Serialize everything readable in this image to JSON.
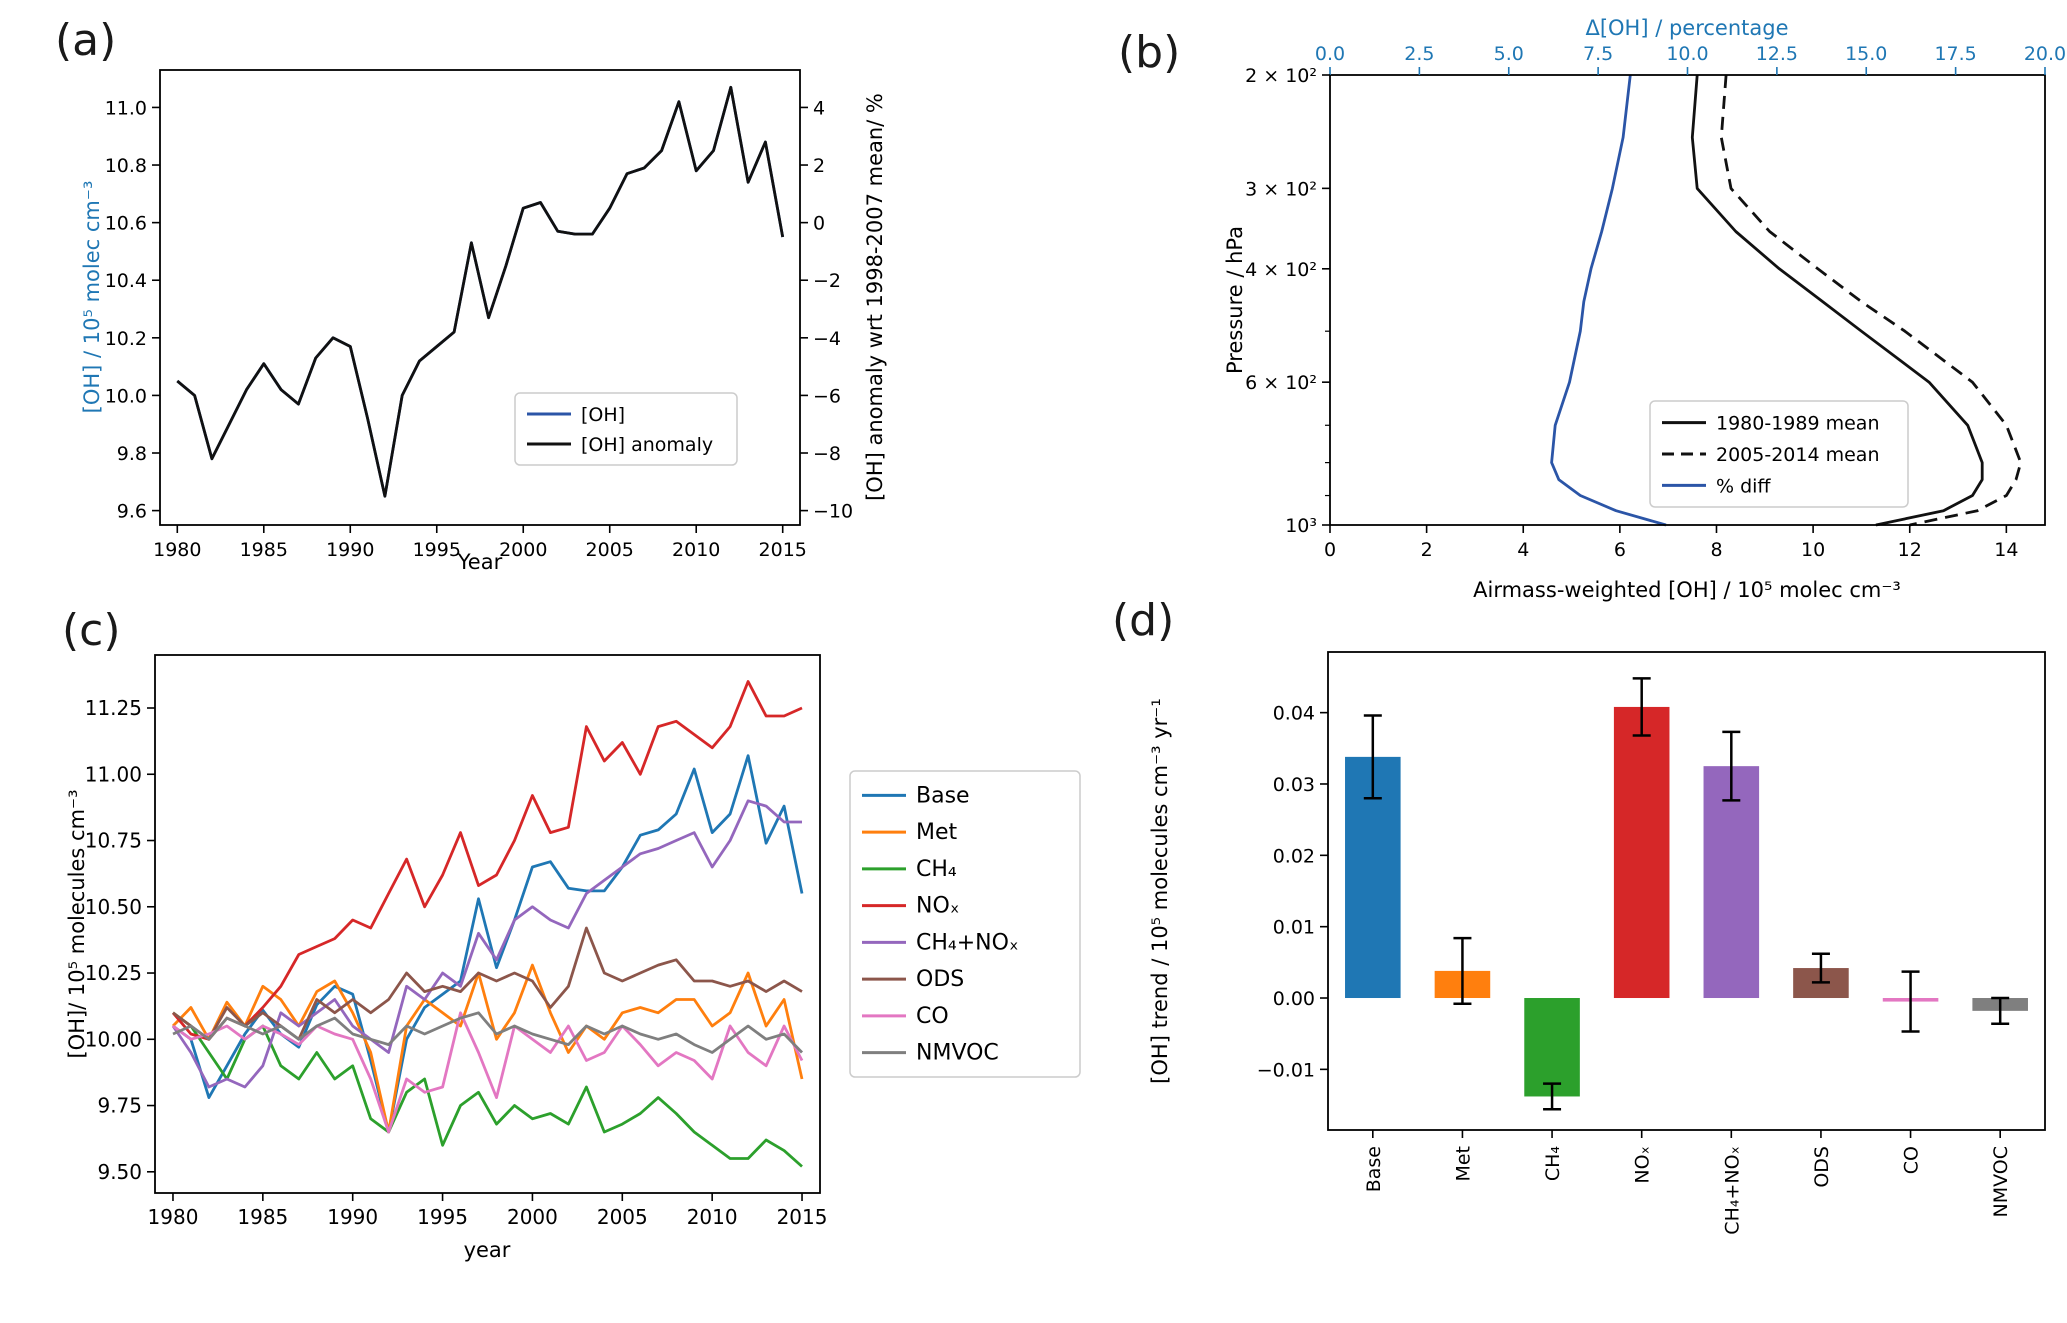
{
  "figure": {
    "background": "#ffffff",
    "accent_blue": "#1f77b4",
    "line_blue": "#2b55a7",
    "line_black": "#111111"
  },
  "panels": {
    "a": {
      "letter": "(a)",
      "xlabel": "Year",
      "ylabel_left": "[OH] / 10⁵ molec cm⁻³",
      "ylabel_right": "[OH] anomaly wrt 1998-2007 mean/ %"
    },
    "b": {
      "letter": "(b)",
      "ylabel": "Pressure / hPa",
      "xlabel_top": "Δ[OH] / percentage",
      "xlabel_bottom": "Airmass-weighted [OH] / 10⁵ molec cm⁻³"
    },
    "c": {
      "letter": "(c)",
      "xlabel": "year",
      "ylabel": "[OH]/ 10⁵ molecules cm⁻³"
    },
    "d": {
      "letter": "(d)",
      "ylabel": "[OH] trend / 10⁵ molecules cm⁻³ yr⁻¹"
    }
  },
  "chart_data": [
    {
      "panel": "a",
      "type": "line",
      "xlabel": "Year",
      "ylabel_left": "[OH] / 10⁵ molec cm⁻³",
      "ylabel_right": "[OH] anomaly wrt 1998-2007 mean/ %",
      "xlim": [
        1979,
        2016
      ],
      "xticks": [
        1980,
        1985,
        1990,
        1995,
        2000,
        2005,
        2010,
        2015
      ],
      "ylim_left": [
        9.55,
        11.13
      ],
      "yticks_left": [
        9.6,
        9.8,
        10.0,
        10.2,
        10.4,
        10.6,
        10.8,
        11.0
      ],
      "ylim_right": [
        -10.5,
        5.3
      ],
      "yticks_right": [
        -10,
        -8,
        -6,
        -4,
        -2,
        0,
        2,
        4
      ],
      "years": [
        1980,
        1981,
        1982,
        1983,
        1984,
        1985,
        1986,
        1987,
        1988,
        1989,
        1990,
        1991,
        1992,
        1993,
        1994,
        1995,
        1996,
        1997,
        1998,
        1999,
        2000,
        2001,
        2002,
        2003,
        2004,
        2005,
        2006,
        2007,
        2008,
        2009,
        2010,
        2011,
        2012,
        2013,
        2014,
        2015
      ],
      "series": [
        {
          "name": "[OH]",
          "color": "#2b55a7",
          "dash": "solid",
          "values": [
            10.05,
            10.0,
            9.78,
            9.9,
            10.02,
            10.11,
            10.02,
            9.97,
            10.13,
            10.2,
            10.17,
            9.92,
            9.65,
            10.0,
            10.12,
            10.17,
            10.22,
            10.53,
            10.27,
            10.45,
            10.65,
            10.67,
            10.57,
            10.56,
            10.56,
            10.65,
            10.77,
            10.79,
            10.85,
            11.02,
            10.78,
            10.85,
            11.07,
            10.74,
            10.88,
            10.55
          ]
        },
        {
          "name": "[OH] anomaly",
          "color": "#111111",
          "dash": "solid",
          "values": [
            10.05,
            10.0,
            9.78,
            9.9,
            10.02,
            10.11,
            10.02,
            9.97,
            10.13,
            10.2,
            10.17,
            9.92,
            9.65,
            10.0,
            10.12,
            10.17,
            10.22,
            10.53,
            10.27,
            10.45,
            10.65,
            10.67,
            10.57,
            10.56,
            10.56,
            10.65,
            10.77,
            10.79,
            10.85,
            11.02,
            10.78,
            10.85,
            11.07,
            10.74,
            10.88,
            10.55
          ]
        }
      ],
      "legend": [
        "[OH]",
        "[OH] anomaly"
      ],
      "legend_position": "center-right"
    },
    {
      "panel": "b",
      "type": "profile-line",
      "ylabel": "Pressure / hPa",
      "xlabel_bottom": "Airmass-weighted [OH] / 10⁵ molec cm⁻³",
      "xlabel_top": "Δ[OH] / percentage",
      "plim": [
        200,
        1000
      ],
      "yticks": [
        {
          "v": 200,
          "label": "2 × 10²"
        },
        {
          "v": 300,
          "label": "3 × 10²"
        },
        {
          "v": 400,
          "label": "4 × 10²"
        },
        {
          "v": 600,
          "label": "6 × 10²"
        },
        {
          "v": 1000,
          "label": "10³"
        }
      ],
      "yticks_minor": [
        500,
        700,
        800,
        900
      ],
      "xlim_bottom": [
        0,
        14.8
      ],
      "xticks_bottom": [
        0,
        2,
        4,
        6,
        8,
        10,
        12,
        14
      ],
      "xlim_top": [
        0,
        20
      ],
      "xticks_top": [
        0.0,
        2.5,
        5.0,
        7.5,
        10.0,
        12.5,
        15.0,
        17.5,
        20.0
      ],
      "pressure": [
        200,
        250,
        300,
        350,
        400,
        450,
        500,
        600,
        700,
        800,
        850,
        900,
        950,
        1000
      ],
      "series": [
        {
          "name": "1980-1989 mean",
          "axis": "bottom",
          "color": "#111111",
          "dash": "solid",
          "values": [
            7.6,
            7.5,
            7.6,
            8.4,
            9.3,
            10.2,
            11.0,
            12.4,
            13.2,
            13.5,
            13.5,
            13.3,
            12.7,
            11.3
          ]
        },
        {
          "name": "2005-2014 mean",
          "axis": "bottom",
          "color": "#111111",
          "dash": "dashed",
          "values": [
            8.2,
            8.1,
            8.3,
            9.1,
            10.1,
            11.0,
            11.9,
            13.3,
            14.0,
            14.3,
            14.2,
            14.0,
            13.4,
            12.0
          ]
        },
        {
          "name": "% diff",
          "axis": "top",
          "color": "#2b55a7",
          "dash": "solid",
          "values": [
            8.4,
            8.2,
            7.9,
            7.6,
            7.3,
            7.1,
            7.0,
            6.7,
            6.3,
            6.2,
            6.4,
            7.0,
            8.0,
            9.4
          ]
        }
      ],
      "legend": [
        "1980-1989 mean",
        "2005-2014 mean",
        "% diff"
      ],
      "legend_position": "center-right"
    },
    {
      "panel": "c",
      "type": "line",
      "xlabel": "year",
      "ylabel": "[OH]/ 10⁵ molecules cm⁻³",
      "xlim": [
        1979,
        2016
      ],
      "xticks": [
        1980,
        1985,
        1990,
        1995,
        2000,
        2005,
        2010,
        2015
      ],
      "ylim": [
        9.42,
        11.45
      ],
      "yticks": [
        9.5,
        9.75,
        10.0,
        10.25,
        10.5,
        10.75,
        11.0,
        11.25
      ],
      "years": [
        1980,
        1981,
        1982,
        1983,
        1984,
        1985,
        1986,
        1987,
        1988,
        1989,
        1990,
        1991,
        1992,
        1993,
        1994,
        1995,
        1996,
        1997,
        1998,
        1999,
        2000,
        2001,
        2002,
        2003,
        2004,
        2005,
        2006,
        2007,
        2008,
        2009,
        2010,
        2011,
        2012,
        2013,
        2014,
        2015
      ],
      "series": [
        {
          "name": "Base",
          "color": "#1f77b4",
          "values": [
            10.05,
            10.0,
            9.78,
            9.9,
            10.02,
            10.11,
            10.02,
            9.97,
            10.13,
            10.2,
            10.17,
            9.92,
            9.65,
            10.0,
            10.12,
            10.17,
            10.22,
            10.53,
            10.27,
            10.45,
            10.65,
            10.67,
            10.57,
            10.56,
            10.56,
            10.65,
            10.77,
            10.79,
            10.85,
            11.02,
            10.78,
            10.85,
            11.07,
            10.74,
            10.88,
            10.55
          ]
        },
        {
          "name": "Met",
          "color": "#ff7f0e",
          "values": [
            10.05,
            10.12,
            10.0,
            10.14,
            10.05,
            10.2,
            10.15,
            10.05,
            10.18,
            10.22,
            10.1,
            9.95,
            9.65,
            10.05,
            10.15,
            10.1,
            10.05,
            10.25,
            10.0,
            10.1,
            10.28,
            10.1,
            9.95,
            10.05,
            10.0,
            10.1,
            10.12,
            10.1,
            10.15,
            10.15,
            10.05,
            10.1,
            10.25,
            10.05,
            10.15,
            9.85
          ]
        },
        {
          "name": "CH₄",
          "color": "#2ca02c",
          "values": [
            10.1,
            10.05,
            9.95,
            9.85,
            10.0,
            10.05,
            9.9,
            9.85,
            9.95,
            9.85,
            9.9,
            9.7,
            9.65,
            9.8,
            9.85,
            9.6,
            9.75,
            9.8,
            9.68,
            9.75,
            9.7,
            9.72,
            9.68,
            9.82,
            9.65,
            9.68,
            9.72,
            9.78,
            9.72,
            9.65,
            9.6,
            9.55,
            9.55,
            9.62,
            9.58,
            9.52
          ]
        },
        {
          "name": "NOₓ",
          "color": "#d62728",
          "values": [
            10.1,
            10.02,
            10.0,
            10.08,
            10.05,
            10.12,
            10.2,
            10.32,
            10.35,
            10.38,
            10.45,
            10.42,
            10.55,
            10.68,
            10.5,
            10.62,
            10.78,
            10.58,
            10.62,
            10.75,
            10.92,
            10.78,
            10.8,
            11.18,
            11.05,
            11.12,
            11.0,
            11.18,
            11.2,
            11.15,
            11.1,
            11.18,
            11.35,
            11.22,
            11.22,
            11.25
          ]
        },
        {
          "name": "CH₄+NOₓ",
          "color": "#9467bd",
          "values": [
            10.05,
            9.95,
            9.82,
            9.85,
            9.82,
            9.9,
            10.1,
            10.05,
            10.1,
            10.15,
            10.05,
            10.0,
            9.95,
            10.2,
            10.15,
            10.25,
            10.2,
            10.4,
            10.3,
            10.45,
            10.5,
            10.45,
            10.42,
            10.55,
            10.6,
            10.65,
            10.7,
            10.72,
            10.75,
            10.78,
            10.65,
            10.75,
            10.9,
            10.88,
            10.82,
            10.82
          ]
        },
        {
          "name": "ODS",
          "color": "#8c564b",
          "values": [
            10.1,
            10.05,
            10.0,
            10.12,
            10.05,
            10.1,
            10.05,
            10.0,
            10.15,
            10.1,
            10.15,
            10.1,
            10.15,
            10.25,
            10.18,
            10.2,
            10.18,
            10.25,
            10.22,
            10.25,
            10.22,
            10.12,
            10.2,
            10.42,
            10.25,
            10.22,
            10.25,
            10.28,
            10.3,
            10.22,
            10.22,
            10.2,
            10.22,
            10.18,
            10.22,
            10.18
          ]
        },
        {
          "name": "CO",
          "color": "#e377c2",
          "values": [
            10.05,
            10.0,
            10.02,
            10.05,
            10.0,
            10.05,
            10.02,
            9.98,
            10.05,
            10.02,
            10.0,
            9.85,
            9.65,
            9.85,
            9.8,
            9.82,
            10.1,
            9.95,
            9.78,
            10.05,
            10.0,
            9.95,
            10.05,
            9.92,
            9.95,
            10.05,
            9.98,
            9.9,
            9.95,
            9.92,
            9.85,
            10.05,
            9.95,
            9.9,
            10.05,
            9.92
          ]
        },
        {
          "name": "NMVOC",
          "color": "#7f7f7f",
          "values": [
            10.02,
            10.05,
            10.0,
            10.08,
            10.05,
            10.02,
            10.05,
            10.0,
            10.05,
            10.08,
            10.02,
            10.0,
            9.98,
            10.05,
            10.02,
            10.05,
            10.08,
            10.1,
            10.02,
            10.05,
            10.02,
            10.0,
            9.98,
            10.05,
            10.02,
            10.05,
            10.02,
            10.0,
            10.02,
            9.98,
            9.95,
            10.0,
            10.05,
            10.0,
            10.02,
            9.95
          ]
        }
      ],
      "legend": [
        "Base",
        "Met",
        "CH₄",
        "NOₓ",
        "CH₄+NOₓ",
        "ODS",
        "CO",
        "NMVOC"
      ],
      "legend_position": "outside-right"
    },
    {
      "panel": "d",
      "type": "bar",
      "ylabel": "[OH] trend / 10⁵ molecules cm⁻³ yr⁻¹",
      "categories": [
        "Base",
        "Met",
        "CH₄",
        "NOₓ",
        "CH₄+NOₓ",
        "ODS",
        "CO",
        "NMVOC"
      ],
      "values": [
        0.0338,
        0.0038,
        -0.0138,
        0.0408,
        0.0325,
        0.0042,
        -0.0005,
        -0.0018
      ],
      "errors": [
        0.0058,
        0.0046,
        0.0018,
        0.004,
        0.0048,
        0.002,
        0.0042,
        0.0018
      ],
      "colors": [
        "#1f77b4",
        "#ff7f0e",
        "#2ca02c",
        "#d62728",
        "#9467bd",
        "#8c564b",
        "#e377c2",
        "#7f7f7f"
      ],
      "ylim": [
        -0.0185,
        0.0485
      ],
      "yticks": [
        -0.01,
        0.0,
        0.01,
        0.02,
        0.03,
        0.04
      ]
    }
  ]
}
